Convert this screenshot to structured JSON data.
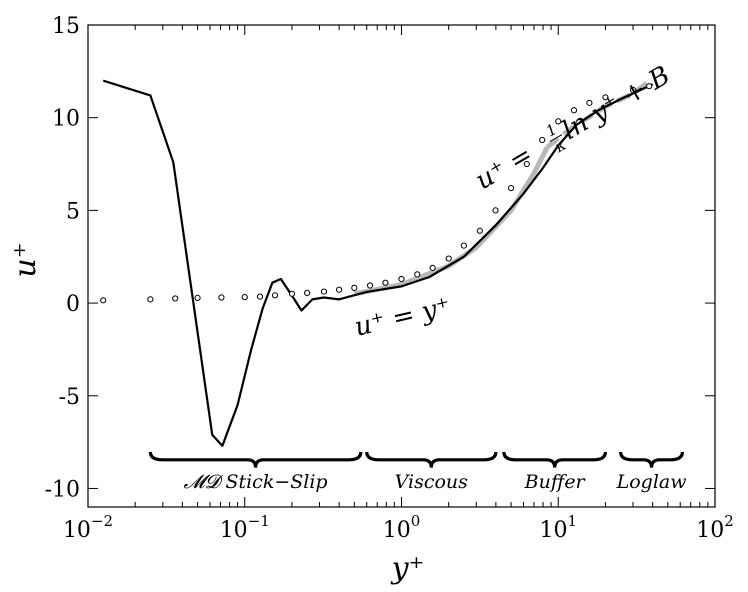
{
  "chart_data": {
    "type": "line",
    "x_scale": "log",
    "xlim": [
      0.01,
      100
    ],
    "ylim": [
      -11,
      15
    ],
    "xlabel": "y⁺",
    "ylabel": "u⁺",
    "x_ticks": [
      {
        "value": 0.01,
        "base": "10",
        "exp": "−2"
      },
      {
        "value": 0.1,
        "base": "10",
        "exp": "−1"
      },
      {
        "value": 1,
        "base": "10",
        "exp": "0"
      },
      {
        "value": 10,
        "base": "10",
        "exp": "1"
      },
      {
        "value": 100,
        "base": "10",
        "exp": "2"
      }
    ],
    "y_ticks": [
      {
        "value": 15,
        "label": "15"
      },
      {
        "value": 10,
        "label": "10"
      },
      {
        "value": 5,
        "label": "5"
      },
      {
        "value": 0,
        "label": "0"
      },
      {
        "value": -5,
        "label": "-5"
      },
      {
        "value": -10,
        "label": "-10"
      }
    ],
    "grid": false,
    "series": [
      {
        "style": "black solid line",
        "color": "#000000",
        "x": [
          0.0125,
          0.025,
          0.035,
          0.062,
          0.072,
          0.09,
          0.11,
          0.13,
          0.15,
          0.17,
          0.2,
          0.23,
          0.27,
          0.32,
          0.4,
          0.6,
          1.0,
          1.5,
          2.5,
          4.0,
          6.0,
          8.0,
          10.0,
          13.0,
          18.0,
          25.0,
          40.0
        ],
        "y": [
          12.0,
          11.2,
          7.6,
          -7.1,
          -7.7,
          -5.5,
          -2.5,
          -0.3,
          1.1,
          1.3,
          0.4,
          -0.4,
          0.2,
          0.3,
          0.2,
          0.6,
          0.9,
          1.4,
          2.5,
          4.2,
          5.9,
          7.3,
          8.5,
          9.6,
          10.4,
          11.0,
          11.8
        ]
      },
      {
        "style": "gray thick solid/dashed line",
        "color": "#b8b8b8",
        "x": [
          0.5,
          1.0,
          2.0,
          3.0,
          5.0,
          7.0,
          8.5,
          12.0,
          20.0,
          30.0,
          40.0
        ],
        "y": [
          0.5,
          1.0,
          2.0,
          3.0,
          5.0,
          7.0,
          8.4,
          9.4,
          10.6,
          11.3,
          12.1
        ]
      },
      {
        "style": "open circle markers",
        "color": "#000000",
        "x": [
          0.0125,
          0.025,
          0.036,
          0.05,
          0.071,
          0.1,
          0.125,
          0.156,
          0.2,
          0.25,
          0.32,
          0.4,
          0.5,
          0.63,
          0.79,
          1.0,
          1.26,
          1.58,
          2.0,
          2.5,
          3.16,
          3.98,
          5.0,
          6.3,
          7.9,
          10.0,
          12.6,
          15.8,
          20.0,
          30.0,
          38.0
        ],
        "y": [
          0.15,
          0.2,
          0.25,
          0.28,
          0.3,
          0.32,
          0.35,
          0.42,
          0.5,
          0.55,
          0.62,
          0.72,
          0.82,
          0.95,
          1.1,
          1.3,
          1.55,
          1.9,
          2.4,
          3.1,
          3.9,
          5.0,
          6.2,
          7.5,
          8.8,
          9.8,
          10.4,
          10.8,
          11.1,
          11.5,
          11.7
        ]
      }
    ],
    "annotations": {
      "viscous_law": {
        "lhs": "u⁺ = y⁺"
      },
      "log_law": {
        "prefix": "u⁺ = ",
        "frac_num": "1",
        "frac_den": "κ",
        "suffix": "ln y⁺ + B"
      }
    },
    "regions": [
      {
        "label": "𝓜𝓓 Stick−Slip",
        "from": 0.025,
        "to": 0.55
      },
      {
        "label": "Viscous",
        "from": 0.6,
        "to": 4.0
      },
      {
        "label": "Buffer",
        "from": 4.5,
        "to": 20.0
      },
      {
        "label": "Loglaw",
        "from": 25.0,
        "to": 62.0
      }
    ]
  }
}
